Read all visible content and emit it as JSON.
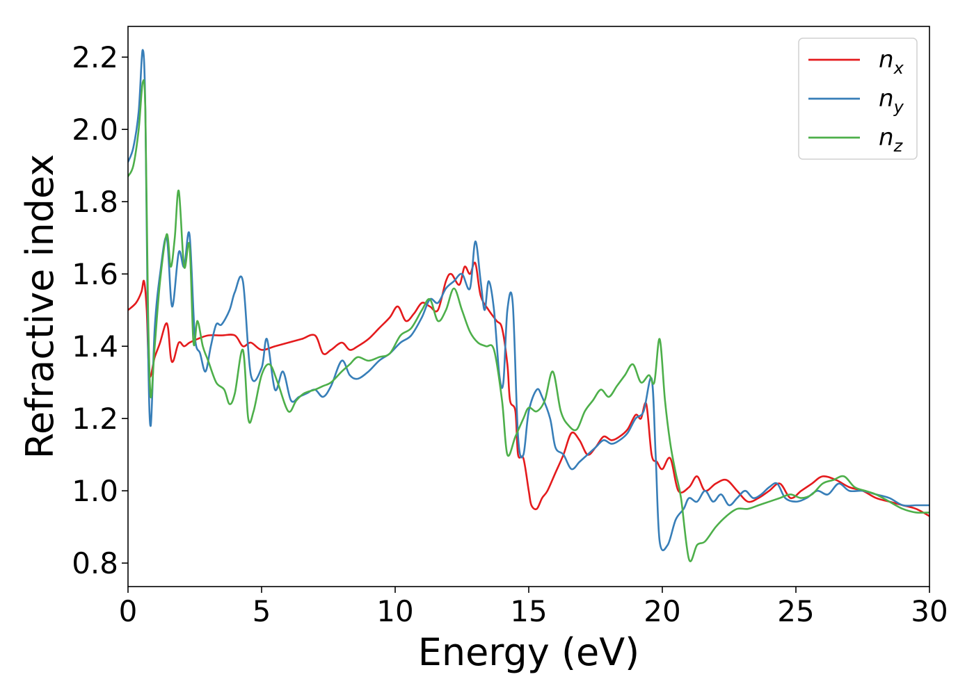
{
  "chart_data": {
    "type": "line",
    "title": "",
    "xlabel": "Energy (eV)",
    "ylabel": "Refractive index",
    "xlim": [
      0,
      30
    ],
    "ylim": [
      0.735,
      2.285
    ],
    "xticks": [
      0,
      5,
      10,
      15,
      20,
      25,
      30
    ],
    "xtick_labels": [
      "0",
      "5",
      "10",
      "15",
      "20",
      "25",
      "30"
    ],
    "yticks": [
      0.8,
      1.0,
      1.2,
      1.4,
      1.6,
      1.8,
      2.0,
      2.2
    ],
    "ytick_labels": [
      "0.8",
      "1.0",
      "1.2",
      "1.4",
      "1.6",
      "1.8",
      "2.0",
      "2.2"
    ],
    "grid": false,
    "legend_position": "top-right",
    "series": [
      {
        "name": "n",
        "subscript": "x",
        "color": "#e41a1c",
        "x": [
          0,
          0.3,
          0.5,
          0.6,
          0.7,
          0.8,
          1.0,
          1.2,
          1.4,
          1.5,
          1.6,
          1.7,
          1.9,
          2.1,
          2.3,
          2.6,
          3.0,
          3.5,
          4.0,
          4.3,
          4.6,
          5.0,
          5.5,
          6.0,
          6.5,
          7.0,
          7.3,
          7.6,
          8.0,
          8.3,
          8.6,
          9.0,
          9.4,
          9.8,
          10.1,
          10.4,
          10.7,
          11.0,
          11.3,
          11.6,
          11.9,
          12.1,
          12.4,
          12.6,
          12.8,
          13.0,
          13.2,
          13.5,
          13.8,
          14.0,
          14.2,
          14.3,
          14.5,
          14.6,
          14.8,
          15.0,
          15.1,
          15.3,
          15.5,
          15.7,
          16.0,
          16.3,
          16.6,
          16.9,
          17.2,
          17.5,
          17.8,
          18.1,
          18.4,
          18.7,
          19.0,
          19.2,
          19.4,
          19.6,
          19.8,
          20.0,
          20.3,
          20.6,
          21.0,
          21.3,
          21.6,
          22.0,
          22.4,
          22.8,
          23.2,
          23.6,
          24.0,
          24.4,
          24.8,
          25.2,
          25.6,
          26.0,
          26.5,
          27.0,
          27.5,
          28.0,
          28.5,
          29.0,
          29.5,
          30.0
        ],
        "y": [
          1.5,
          1.52,
          1.55,
          1.58,
          1.5,
          1.32,
          1.37,
          1.41,
          1.46,
          1.45,
          1.37,
          1.36,
          1.41,
          1.4,
          1.41,
          1.42,
          1.43,
          1.43,
          1.43,
          1.4,
          1.41,
          1.39,
          1.4,
          1.41,
          1.42,
          1.43,
          1.38,
          1.39,
          1.41,
          1.39,
          1.4,
          1.42,
          1.45,
          1.48,
          1.51,
          1.47,
          1.49,
          1.52,
          1.51,
          1.5,
          1.58,
          1.6,
          1.57,
          1.62,
          1.6,
          1.63,
          1.54,
          1.5,
          1.47,
          1.45,
          1.35,
          1.25,
          1.22,
          1.1,
          1.09,
          1.0,
          0.96,
          0.95,
          0.98,
          1.0,
          1.05,
          1.1,
          1.16,
          1.14,
          1.1,
          1.12,
          1.15,
          1.14,
          1.15,
          1.17,
          1.21,
          1.2,
          1.24,
          1.1,
          1.08,
          1.06,
          1.09,
          1.0,
          1.01,
          1.04,
          1.0,
          1.02,
          1.03,
          1.0,
          0.97,
          0.98,
          1.0,
          1.02,
          0.98,
          1.0,
          1.02,
          1.04,
          1.03,
          1.01,
          1.0,
          0.98,
          0.97,
          0.96,
          0.95,
          0.93
        ]
      },
      {
        "name": "n",
        "subscript": "y",
        "color": "#377eb8",
        "x": [
          0,
          0.2,
          0.4,
          0.55,
          0.65,
          0.75,
          0.85,
          1.0,
          1.2,
          1.45,
          1.65,
          1.9,
          2.1,
          2.3,
          2.5,
          2.7,
          2.9,
          3.1,
          3.3,
          3.5,
          3.8,
          4.0,
          4.3,
          4.6,
          5.0,
          5.2,
          5.5,
          5.8,
          6.1,
          6.4,
          6.7,
          7.0,
          7.3,
          7.6,
          8.0,
          8.3,
          8.6,
          9.0,
          9.4,
          9.8,
          10.2,
          10.6,
          11.0,
          11.3,
          11.6,
          11.9,
          12.2,
          12.5,
          12.8,
          13.0,
          13.2,
          13.35,
          13.5,
          13.7,
          13.9,
          14.05,
          14.2,
          14.4,
          14.6,
          14.8,
          15.0,
          15.3,
          15.5,
          15.8,
          16.0,
          16.3,
          16.6,
          16.9,
          17.2,
          17.5,
          17.8,
          18.1,
          18.4,
          18.7,
          19.0,
          19.3,
          19.6,
          19.75,
          19.9,
          20.2,
          20.5,
          20.8,
          21.0,
          21.3,
          21.6,
          21.9,
          22.2,
          22.5,
          22.8,
          23.1,
          23.4,
          23.7,
          24.0,
          24.3,
          24.6,
          25.0,
          25.4,
          25.8,
          26.2,
          26.6,
          27.0,
          27.5,
          28.0,
          28.5,
          29.0,
          29.5,
          30.0
        ],
        "y": [
          1.91,
          1.95,
          2.05,
          2.22,
          2.05,
          1.4,
          1.18,
          1.45,
          1.6,
          1.7,
          1.51,
          1.66,
          1.62,
          1.71,
          1.43,
          1.38,
          1.33,
          1.4,
          1.46,
          1.46,
          1.5,
          1.55,
          1.58,
          1.32,
          1.34,
          1.42,
          1.28,
          1.33,
          1.25,
          1.26,
          1.27,
          1.28,
          1.26,
          1.29,
          1.36,
          1.32,
          1.31,
          1.33,
          1.36,
          1.38,
          1.41,
          1.43,
          1.48,
          1.53,
          1.52,
          1.56,
          1.58,
          1.6,
          1.56,
          1.69,
          1.58,
          1.5,
          1.58,
          1.5,
          1.32,
          1.3,
          1.5,
          1.52,
          1.15,
          1.1,
          1.22,
          1.28,
          1.26,
          1.2,
          1.12,
          1.1,
          1.06,
          1.08,
          1.1,
          1.12,
          1.14,
          1.13,
          1.14,
          1.16,
          1.2,
          1.22,
          1.31,
          1.1,
          0.86,
          0.85,
          0.92,
          0.95,
          0.98,
          0.97,
          1.0,
          0.97,
          0.99,
          0.96,
          0.98,
          1.0,
          0.98,
          0.99,
          1.01,
          1.02,
          0.98,
          0.97,
          0.98,
          1.0,
          0.99,
          1.02,
          1.0,
          1.0,
          0.99,
          0.98,
          0.96,
          0.96,
          0.96
        ]
      },
      {
        "name": "n",
        "subscript": "z",
        "color": "#4daf4a",
        "x": [
          0,
          0.2,
          0.4,
          0.55,
          0.65,
          0.75,
          0.85,
          1.0,
          1.2,
          1.45,
          1.6,
          1.75,
          1.9,
          2.1,
          2.3,
          2.45,
          2.6,
          2.8,
          3.0,
          3.3,
          3.6,
          3.8,
          4.0,
          4.3,
          4.5,
          4.7,
          5.0,
          5.3,
          5.6,
          6.0,
          6.3,
          6.6,
          7.0,
          7.3,
          7.6,
          8.0,
          8.3,
          8.6,
          9.0,
          9.4,
          9.8,
          10.2,
          10.6,
          11.0,
          11.3,
          11.6,
          11.9,
          12.2,
          12.5,
          12.8,
          13.1,
          13.4,
          13.7,
          14.0,
          14.2,
          14.5,
          14.8,
          15.0,
          15.3,
          15.6,
          15.9,
          16.2,
          16.5,
          16.8,
          17.1,
          17.4,
          17.7,
          18.0,
          18.3,
          18.6,
          18.9,
          19.2,
          19.5,
          19.7,
          19.9,
          20.1,
          20.3,
          20.5,
          20.7,
          21.0,
          21.3,
          21.6,
          22.0,
          22.4,
          22.8,
          23.2,
          23.6,
          24.0,
          24.4,
          24.8,
          25.2,
          25.6,
          26.0,
          26.4,
          26.8,
          27.2,
          27.6,
          28.0,
          28.5,
          29.0,
          29.5,
          30.0
        ],
        "y": [
          1.87,
          1.9,
          2.0,
          2.13,
          2.05,
          1.5,
          1.26,
          1.4,
          1.58,
          1.71,
          1.62,
          1.7,
          1.83,
          1.62,
          1.68,
          1.41,
          1.47,
          1.4,
          1.36,
          1.3,
          1.28,
          1.24,
          1.27,
          1.39,
          1.2,
          1.22,
          1.32,
          1.35,
          1.3,
          1.22,
          1.25,
          1.27,
          1.28,
          1.29,
          1.3,
          1.33,
          1.35,
          1.37,
          1.36,
          1.37,
          1.38,
          1.43,
          1.45,
          1.5,
          1.53,
          1.47,
          1.5,
          1.56,
          1.5,
          1.44,
          1.41,
          1.4,
          1.39,
          1.25,
          1.1,
          1.15,
          1.2,
          1.23,
          1.22,
          1.25,
          1.33,
          1.22,
          1.18,
          1.17,
          1.22,
          1.25,
          1.28,
          1.26,
          1.29,
          1.32,
          1.35,
          1.3,
          1.32,
          1.3,
          1.42,
          1.25,
          1.13,
          1.05,
          0.98,
          0.81,
          0.85,
          0.86,
          0.9,
          0.93,
          0.95,
          0.95,
          0.96,
          0.97,
          0.98,
          0.99,
          0.98,
          0.99,
          1.02,
          1.03,
          1.04,
          1.01,
          1.0,
          0.99,
          0.97,
          0.95,
          0.94,
          0.94
        ]
      }
    ]
  }
}
